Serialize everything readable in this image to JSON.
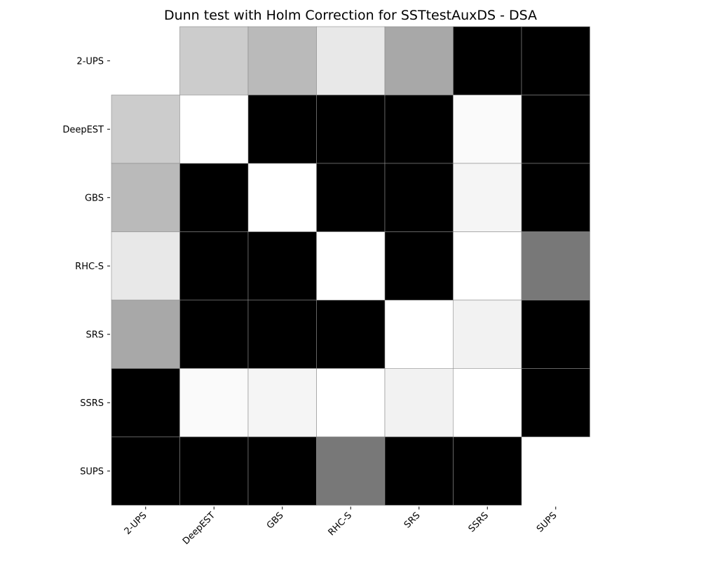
{
  "chart_data": {
    "type": "heatmap",
    "title": "Dunn test with Holm Correction for SSTtestAuxDS - DSA",
    "row_labels": [
      "2-UPS",
      "DeepEST",
      "GBS",
      "RHC-S",
      "SRS",
      "SSRS",
      "SUPS"
    ],
    "col_labels": [
      "2-UPS",
      "DeepEST",
      "GBS",
      "RHC-S",
      "SRS",
      "SSRS",
      "SUPS"
    ],
    "values": [
      [
        1.0,
        0.8,
        0.73,
        0.91,
        0.66,
        0.0,
        0.0
      ],
      [
        0.8,
        1.0,
        0.0,
        0.0,
        0.0,
        0.98,
        0.0
      ],
      [
        0.73,
        0.0,
        1.0,
        0.0,
        0.0,
        0.96,
        0.0
      ],
      [
        0.91,
        0.0,
        0.0,
        1.0,
        0.0,
        1.0,
        0.47
      ],
      [
        0.66,
        0.0,
        0.0,
        0.0,
        1.0,
        0.95,
        0.0
      ],
      [
        0.0,
        0.98,
        0.96,
        1.0,
        0.95,
        1.0,
        0.0
      ],
      [
        0.0,
        0.0,
        0.0,
        0.47,
        0.0,
        0.0,
        1.0
      ]
    ],
    "colormap": "gray",
    "value_range": [
      0,
      1
    ],
    "diagonal": "blank",
    "grid": false,
    "legend": "none",
    "xlabel": "",
    "ylabel": ""
  }
}
